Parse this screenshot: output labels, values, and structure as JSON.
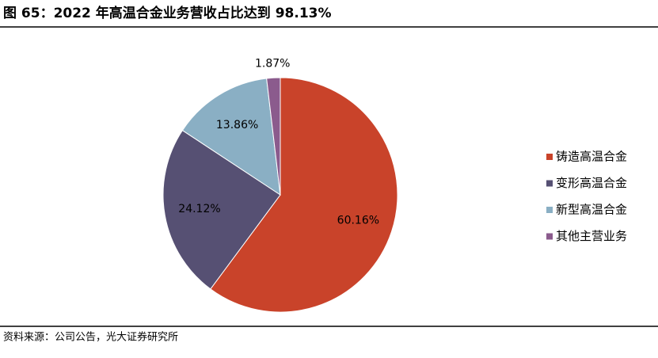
{
  "chart_data": {
    "type": "pie",
    "title": "图 65：2022 年高温合金业务营收占比达到 98.13%",
    "categories": [
      "铸造高温合金",
      "变形高温合金",
      "新型高温合金",
      "其他主营业务"
    ],
    "values": [
      60.16,
      24.12,
      13.86,
      1.87
    ],
    "value_labels": [
      "60.16%",
      "24.12%",
      "13.86%",
      "1.87%"
    ],
    "colors": [
      "#c9432a",
      "#565073",
      "#8aafc4",
      "#8b5b8d"
    ],
    "legend": "right",
    "source": "资料来源：公司公告，光大证券研究所"
  }
}
